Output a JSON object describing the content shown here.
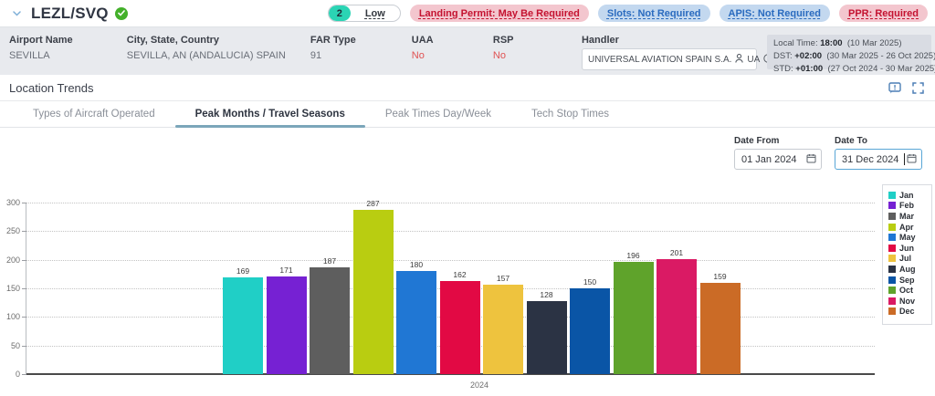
{
  "header": {
    "title": "LEZL/SVQ",
    "risk_count": "2",
    "risk_label": "Low",
    "badges": [
      {
        "label": "Landing Permit: May Be Required",
        "type": "red"
      },
      {
        "label": "Slots: Not Required",
        "type": "blue"
      },
      {
        "label": "APIS: Not Required",
        "type": "blue"
      },
      {
        "label": "PPR: Required",
        "type": "red"
      }
    ]
  },
  "info_bar": {
    "fields": [
      {
        "label": "Airport Name",
        "value": "SEVILLA"
      },
      {
        "label": "City, State, Country",
        "value": "SEVILLA, AN (ANDALUCIA) SPAIN"
      },
      {
        "label": "FAR Type",
        "value": "91"
      },
      {
        "label": "UAA",
        "value": "No"
      },
      {
        "label": "RSP",
        "value": "No"
      }
    ],
    "handler": {
      "label": "Handler",
      "value": "UNIVERSAL AVIATION SPAIN S.A.",
      "code": "UA"
    },
    "time_info": [
      {
        "label": "Local Time:",
        "value": "18:00",
        "range": "(10 Mar 2025)"
      },
      {
        "label": "DST:",
        "value": "+02:00",
        "range": "(30 Mar 2025 - 26 Oct 2025)"
      },
      {
        "label": "STD:",
        "value": "+01:00",
        "range": "(27 Oct 2024 - 30 Mar 2025)"
      }
    ]
  },
  "section": {
    "title": "Location Trends",
    "tabs": [
      {
        "label": "Types of Aircraft Operated",
        "active": false
      },
      {
        "label": "Peak Months / Travel Seasons",
        "active": true
      },
      {
        "label": "Peak Times Day/Week",
        "active": false
      },
      {
        "label": "Tech Stop Times",
        "active": false
      }
    ],
    "date_from": {
      "label": "Date From",
      "value": "01 Jan 2024"
    },
    "date_to": {
      "label": "Date To",
      "value": "31 Dec 2024"
    }
  },
  "chart_data": {
    "type": "bar",
    "title": "Peak Months / Travel Seasons",
    "x_category": "2024",
    "xlabel": "",
    "ylabel": "",
    "ylim": [
      0,
      300
    ],
    "yticks": [
      0,
      50,
      100,
      150,
      200,
      250,
      300
    ],
    "grid": true,
    "legend_position": "right",
    "series": [
      {
        "name": "Jan",
        "value": 169,
        "color": "#20cfc6"
      },
      {
        "name": "Feb",
        "value": 171,
        "color": "#7621d3"
      },
      {
        "name": "Mar",
        "value": 187,
        "color": "#5e5e5e"
      },
      {
        "name": "Apr",
        "value": 287,
        "color": "#b9cd11"
      },
      {
        "name": "May",
        "value": 180,
        "color": "#2077d4"
      },
      {
        "name": "Jun",
        "value": 162,
        "color": "#e20944"
      },
      {
        "name": "Jul",
        "value": 157,
        "color": "#eec33e"
      },
      {
        "name": "Aug",
        "value": 128,
        "color": "#2b3344"
      },
      {
        "name": "Sep",
        "value": 150,
        "color": "#0a55a6"
      },
      {
        "name": "Oct",
        "value": 196,
        "color": "#5fa32b"
      },
      {
        "name": "Nov",
        "value": 201,
        "color": "#da1a64"
      },
      {
        "name": "Dec",
        "value": 159,
        "color": "#cb6b26"
      }
    ]
  }
}
